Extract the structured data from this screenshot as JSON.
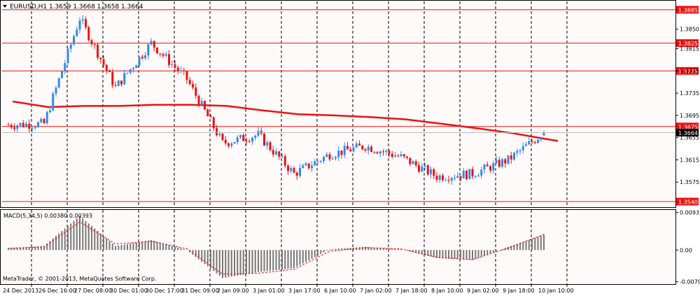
{
  "main": {
    "header": "EURUSD,H1  1.3659 1.3668 1.3658 1.3664",
    "y_ticks": [
      "1.3850",
      "1.3815",
      "1.3775",
      "1.3735",
      "1.3695",
      "1.3655",
      "1.3615",
      "1.3575"
    ],
    "ylim": [
      1.353,
      1.39
    ],
    "levels": [
      "1.3885",
      "1.3825",
      "1.3775",
      "1.3675",
      "1.3540"
    ],
    "current_price": "1.3664",
    "colors": {
      "up": "#3388ee",
      "down": "#ee1111",
      "ma": "#ee1111",
      "level": "#ee1111",
      "grid": "#000000",
      "bg": "#fffafa"
    }
  },
  "macd": {
    "label": "MACD(5,34,5) 0.00380 0.00393",
    "y_ticks": [
      "0.00937",
      "0.00",
      "-0.0079"
    ],
    "ylim": [
      -0.0085,
      0.01
    ]
  },
  "x_labels": [
    "24 Dec 2013",
    "26 Dec 16:00",
    "27 Dec 08:00",
    "30 Dec 01:00",
    "30 Dec 17:00",
    "31 Dec 09:00",
    "2 Jan 09:00",
    "3 Jan 01:00",
    "3 Jan 17:00",
    "6 Jan 10:00",
    "7 Jan 02:00",
    "7 Jan 18:00",
    "8 Jan 10:00",
    "9 Jan 02:00",
    "9 Jan 18:00",
    "10 Jan 10:00"
  ],
  "copyright": "MetaTrader, © 2001-2013, MetaQuotes Software Corp.",
  "chart_data": [
    {
      "type": "line",
      "title": "EURUSD,H1",
      "x": [
        "24 Dec 2013",
        "26 Dec 16:00",
        "27 Dec 08:00",
        "30 Dec 01:00",
        "30 Dec 17:00",
        "31 Dec 09:00",
        "2 Jan 09:00",
        "3 Jan 01:00",
        "3 Jan 17:00",
        "6 Jan 10:00",
        "7 Jan 02:00",
        "7 Jan 18:00",
        "8 Jan 10:00",
        "9 Jan 02:00",
        "9 Jan 18:00",
        "10 Jan 10:00"
      ],
      "series": [
        {
          "values": [
            1.3678,
            1.368,
            1.387,
            1.3745,
            1.3825,
            1.376,
            1.3645,
            1.366,
            1.359,
            1.3625,
            1.364,
            1.362,
            1.3585,
            1.359,
            1.3615,
            1.3664
          ]
        },
        {
          "values": [
            1.372,
            1.371,
            1.3712,
            1.3712,
            1.3714,
            1.3714,
            1.3712,
            1.3704,
            1.3697,
            1.3695,
            1.3692,
            1.3688,
            1.368,
            1.3672,
            1.3663,
            1.3652
          ]
        }
      ],
      "ylim": [
        1.353,
        1.39
      ]
    },
    {
      "type": "bar",
      "title": "MACD(5,34,5)",
      "categories": [
        "24 Dec 2013",
        "26 Dec 16:00",
        "27 Dec 08:00",
        "30 Dec 01:00",
        "30 Dec 17:00",
        "31 Dec 09:00",
        "2 Jan 09:00",
        "3 Jan 01:00",
        "3 Jan 17:00",
        "6 Jan 10:00",
        "7 Jan 02:00",
        "7 Jan 18:00",
        "8 Jan 10:00",
        "9 Jan 02:00",
        "9 Jan 18:00",
        "10 Jan 10:00"
      ],
      "series": [
        {
          "values": [
            0.0005,
            0.001,
            0.0085,
            0.001,
            0.0025,
            0.0,
            -0.007,
            -0.0055,
            -0.0045,
            0.0002,
            0.0008,
            0.0002,
            -0.002,
            -0.0025,
            0.0008,
            0.0038
          ]
        },
        {
          "values": [
            0.0004,
            0.0008,
            0.007,
            0.0015,
            0.0022,
            0.0003,
            -0.006,
            -0.0058,
            -0.0048,
            -0.0003,
            0.0006,
            0.0003,
            -0.0018,
            -0.0024,
            0.0005,
            0.0039
          ]
        }
      ],
      "ylim": [
        -0.0085,
        0.01
      ]
    }
  ]
}
